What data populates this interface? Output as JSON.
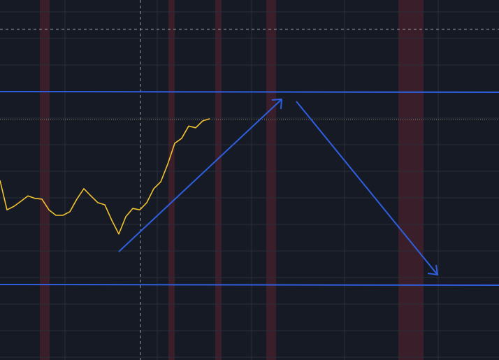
{
  "chart_data": {
    "type": "line",
    "x": [
      0,
      1,
      2,
      3,
      4,
      5,
      6,
      7,
      8,
      9,
      10,
      11,
      12,
      13,
      14,
      15,
      16,
      17,
      18,
      19,
      20,
      21,
      22,
      23,
      24,
      25,
      26,
      27,
      28,
      29,
      30
    ],
    "series": [
      {
        "color": "#f2c230",
        "values": [
          49.9,
          41.7,
          42.7,
          44.1,
          45.6,
          44.9,
          44.7,
          41.7,
          40.2,
          40.2,
          41.2,
          44.7,
          47.6,
          45.6,
          43.7,
          43.1,
          38.8,
          35.0,
          39.8,
          42.1,
          41.7,
          43.7,
          47.6,
          49.5,
          54.4,
          60.2,
          61.6,
          65.0,
          64.5,
          66.4,
          67.0
        ]
      }
    ],
    "xlim": [
      0,
      71.4
    ],
    "ylim": [
      0,
      100
    ],
    "grid": true
  }
}
